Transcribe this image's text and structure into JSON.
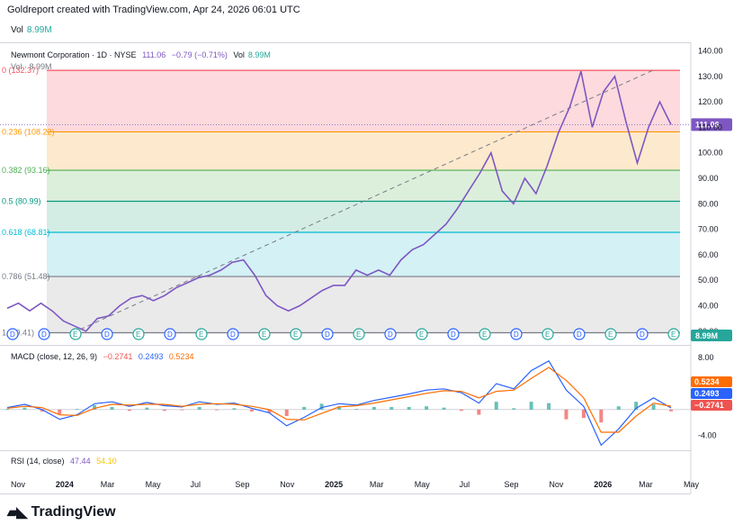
{
  "header": {
    "attribution": "Goldreport created with TradingView.com, Apr 24, 2026 06:01 UTC",
    "vol_label": "Vol",
    "vol_value": "8.99M"
  },
  "main_legend": {
    "title": "Newmont Corporation · 1D · NYSE",
    "price": "111.06",
    "change": "−0.79 (−0.71%)",
    "vol_label": "Vol",
    "vol_value": "8.99M",
    "vol_line2": "Vol · 8.99M"
  },
  "macd_legend": {
    "label": "MACD (close, 12, 26, 9)",
    "hist": "−0.2741",
    "macd": "0.2493",
    "signal": "0.5234"
  },
  "rsi_legend": {
    "label": "RSI (14, close)",
    "rsi": "47.44",
    "ma": "54.10"
  },
  "brand": {
    "name": "TradingView"
  },
  "colors": {
    "price_line": "#7e57c2",
    "macd_line": "#2962ff",
    "signal_line": "#ff6d00",
    "hist_up": "#26a69a",
    "hist_down": "#ef5350",
    "fib_red": "#f7525f",
    "fib_orange": "#ff9800",
    "fib_green": "#4caf50",
    "fib_teal": "#089981",
    "fib_cyan": "#00bcd4",
    "fib_gray": "#787b86"
  },
  "chart_data": [
    {
      "type": "line",
      "title": "Newmont Corporation · 1D · NYSE",
      "ylim": [
        25,
        143
      ],
      "y_ticks": [
        140,
        130,
        120,
        110,
        100,
        90,
        80,
        70,
        60,
        50,
        40,
        30
      ],
      "price_tag": "111.06",
      "volume_tag": "8.99M",
      "x_labels": [
        "Nov",
        "2024",
        "Mar",
        "May",
        "Jul",
        "Sep",
        "Nov",
        "2025",
        "Mar",
        "May",
        "Jul",
        "Sep",
        "Nov",
        "2026",
        "Mar",
        "May"
      ],
      "fib_levels": [
        {
          "label": "0 (132.37)",
          "value": 132.37
        },
        {
          "label": "0.236 (108.22)",
          "value": 108.22
        },
        {
          "label": "0.382 (93.16)",
          "value": 93.16
        },
        {
          "label": "0.5 (80.99)",
          "value": 80.99
        },
        {
          "label": "0.618 (68.81)",
          "value": 68.81
        },
        {
          "label": "0.786 (51.48)",
          "value": 51.48
        },
        {
          "label": "1 (29.41)",
          "value": 29.41
        }
      ],
      "trendline": {
        "from": [
          "2024-02",
          29.41
        ],
        "to": [
          "2026-04",
          132.37
        ]
      },
      "series": [
        {
          "name": "Newmont Corporation",
          "points": [
            [
              "2023-11",
              39
            ],
            [
              "2023-11",
              41
            ],
            [
              "2023-12",
              38
            ],
            [
              "2023-12",
              41
            ],
            [
              "2024-01",
              38
            ],
            [
              "2024-01",
              34
            ],
            [
              "2024-02",
              32
            ],
            [
              "2024-02",
              30
            ],
            [
              "2024-03",
              35
            ],
            [
              "2024-03",
              36
            ],
            [
              "2024-04",
              40
            ],
            [
              "2024-05",
              43
            ],
            [
              "2024-05",
              44
            ],
            [
              "2024-06",
              42
            ],
            [
              "2024-07",
              44
            ],
            [
              "2024-07",
              47
            ],
            [
              "2024-08",
              49
            ],
            [
              "2024-08",
              51
            ],
            [
              "2024-09",
              52
            ],
            [
              "2024-09",
              54
            ],
            [
              "2024-10",
              57
            ],
            [
              "2024-10",
              58
            ],
            [
              "2024-11",
              52
            ],
            [
              "2024-11",
              44
            ],
            [
              "2024-12",
              40
            ],
            [
              "2024-12",
              38
            ],
            [
              "2025-01",
              40
            ],
            [
              "2025-01",
              43
            ],
            [
              "2025-02",
              46
            ],
            [
              "2025-02",
              48
            ],
            [
              "2025-03",
              48
            ],
            [
              "2025-04",
              54
            ],
            [
              "2025-04",
              52
            ],
            [
              "2025-05",
              54
            ],
            [
              "2025-05",
              52
            ],
            [
              "2025-06",
              58
            ],
            [
              "2025-06",
              62
            ],
            [
              "2025-07",
              64
            ],
            [
              "2025-07",
              68
            ],
            [
              "2025-08",
              72
            ],
            [
              "2025-08",
              78
            ],
            [
              "2025-09",
              85
            ],
            [
              "2025-09",
              92
            ],
            [
              "2025-10",
              100
            ],
            [
              "2025-10",
              85
            ],
            [
              "2025-10",
              80
            ],
            [
              "2025-11",
              90
            ],
            [
              "2025-11",
              84
            ],
            [
              "2025-12",
              95
            ],
            [
              "2025-12",
              108
            ],
            [
              "2026-01",
              118
            ],
            [
              "2026-01",
              132
            ],
            [
              "2026-01",
              110
            ],
            [
              "2026-02",
              124
            ],
            [
              "2026-02",
              130
            ],
            [
              "2026-02",
              112
            ],
            [
              "2026-03",
              96
            ],
            [
              "2026-03",
              110
            ],
            [
              "2026-04",
              120
            ],
            [
              "2026-04",
              111.06
            ]
          ]
        }
      ]
    },
    {
      "type": "line",
      "title": "MACD (close, 12, 26, 9)",
      "ylim": [
        -6,
        9
      ],
      "y_ticks": [
        8.0,
        -4.0
      ],
      "tags": {
        "signal": "0.5234",
        "macd": "0.2493",
        "hist": "−0.2741"
      },
      "series": [
        {
          "name": "MACD",
          "values": [
            0.3,
            0.8,
            0.0,
            -1.5,
            -0.8,
            0.9,
            1.2,
            0.5,
            1.1,
            0.6,
            0.4,
            1.2,
            0.8,
            1.0,
            0.2,
            -0.5,
            -2.5,
            -1.2,
            0.3,
            0.9,
            0.7,
            1.4,
            1.9,
            2.4,
            3.0,
            3.2,
            2.6,
            1.0,
            4.0,
            3.2,
            6.0,
            7.5,
            3.0,
            0.5,
            -5.5,
            -3.0,
            0.2,
            1.8,
            0.25
          ]
        },
        {
          "name": "Signal",
          "values": [
            0.2,
            0.5,
            0.3,
            -0.8,
            -0.9,
            0.2,
            0.8,
            0.7,
            0.8,
            0.8,
            0.5,
            0.8,
            0.9,
            0.8,
            0.5,
            0.0,
            -1.5,
            -1.6,
            -0.6,
            0.4,
            0.6,
            1.0,
            1.5,
            2.0,
            2.5,
            2.9,
            2.8,
            1.8,
            2.8,
            3.0,
            4.8,
            6.5,
            4.5,
            1.8,
            -3.5,
            -3.5,
            -1.0,
            1.0,
            0.52
          ]
        }
      ],
      "histogram": [
        0.1,
        0.3,
        -0.3,
        -0.7,
        0.1,
        0.7,
        0.4,
        -0.2,
        0.3,
        -0.2,
        -0.1,
        0.4,
        -0.1,
        0.2,
        -0.3,
        -0.5,
        -1.0,
        0.4,
        0.9,
        0.5,
        0.1,
        0.4,
        0.4,
        0.4,
        0.5,
        0.3,
        -0.2,
        -0.8,
        1.2,
        0.2,
        1.2,
        1.0,
        -1.5,
        -1.3,
        -2.0,
        0.5,
        1.2,
        0.8,
        -0.27
      ]
    }
  ]
}
